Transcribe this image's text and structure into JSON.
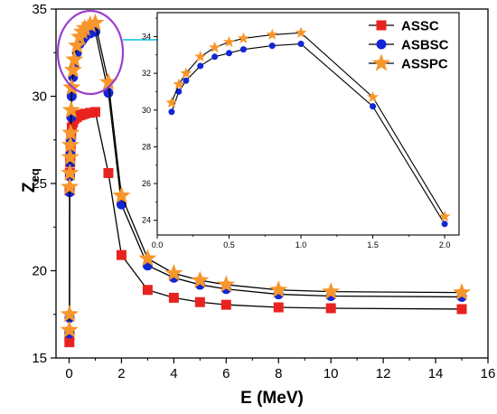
{
  "chart_data": [
    {
      "id": "main",
      "type": "line",
      "xlabel": "E (MeV)",
      "ylabel_main": "Z",
      "ylabel_sub": "eq",
      "xlim": [
        -0.5,
        16
      ],
      "ylim": [
        15,
        35
      ],
      "xticks": [
        0,
        2,
        4,
        6,
        8,
        10,
        12,
        14,
        16
      ],
      "yticks": [
        15,
        20,
        25,
        30,
        35
      ],
      "legend_position": "top-right",
      "series": [
        {
          "name": "ASSC",
          "marker": "square",
          "color": "#e8231f",
          "x": [
            0.01,
            0.015,
            0.02,
            0.03,
            0.04,
            0.05,
            0.06,
            0.08,
            0.1,
            0.15,
            0.2,
            0.3,
            0.4,
            0.5,
            0.6,
            0.8,
            1.0,
            1.5,
            2,
            3,
            4,
            5,
            6,
            8,
            10,
            15
          ],
          "y": [
            15.9,
            16.3,
            24.6,
            25.6,
            26.2,
            26.6,
            27.1,
            27.8,
            28.2,
            28.5,
            28.7,
            28.8,
            28.9,
            28.95,
            29.0,
            29.05,
            29.1,
            25.6,
            20.9,
            18.9,
            18.45,
            18.2,
            18.05,
            17.9,
            17.85,
            17.8
          ]
        },
        {
          "name": "ASBSC",
          "marker": "circle",
          "color": "#1226d6",
          "x": [
            0.01,
            0.015,
            0.02,
            0.03,
            0.04,
            0.05,
            0.06,
            0.08,
            0.1,
            0.15,
            0.2,
            0.3,
            0.4,
            0.5,
            0.6,
            0.8,
            1.0,
            1.5,
            2,
            3,
            4,
            5,
            6,
            8,
            10,
            15
          ],
          "y": [
            16.4,
            17.3,
            24.5,
            25.4,
            26.2,
            26.8,
            27.5,
            28.8,
            30.0,
            31.1,
            31.7,
            32.5,
            33.0,
            33.2,
            33.4,
            33.6,
            33.7,
            30.2,
            23.8,
            20.3,
            19.6,
            19.2,
            18.95,
            18.65,
            18.55,
            18.5
          ]
        },
        {
          "name": "ASSPC",
          "marker": "star",
          "color": "#f7962b",
          "x": [
            0.01,
            0.015,
            0.02,
            0.03,
            0.04,
            0.05,
            0.06,
            0.08,
            0.1,
            0.15,
            0.2,
            0.3,
            0.4,
            0.5,
            0.6,
            0.8,
            1.0,
            1.5,
            2,
            3,
            4,
            5,
            6,
            8,
            10,
            15
          ],
          "y": [
            16.6,
            17.5,
            24.8,
            25.6,
            26.5,
            27.2,
            27.9,
            29.2,
            30.5,
            31.5,
            32.1,
            32.9,
            33.4,
            33.7,
            33.9,
            34.1,
            34.2,
            30.8,
            24.3,
            20.7,
            19.85,
            19.45,
            19.2,
            18.9,
            18.8,
            18.75
          ]
        }
      ]
    },
    {
      "id": "inset",
      "type": "line",
      "xlim": [
        0.0,
        2.1
      ],
      "ylim": [
        23.2,
        35.3
      ],
      "xticks": [
        "0.0",
        "0.5",
        "1.0",
        "1.5",
        "2.0"
      ],
      "yticks": [
        "24",
        "26",
        "28",
        "30",
        "32",
        "34"
      ],
      "series": [
        {
          "name": "ASBSC",
          "marker": "circle",
          "color": "#1226d6",
          "x": [
            0.1,
            0.15,
            0.2,
            0.3,
            0.4,
            0.5,
            0.6,
            0.8,
            1.0,
            1.5,
            2.0
          ],
          "y": [
            29.9,
            31.0,
            31.6,
            32.4,
            32.9,
            33.1,
            33.3,
            33.5,
            33.6,
            30.2,
            23.8
          ]
        },
        {
          "name": "ASSPC",
          "marker": "star",
          "color": "#f7962b",
          "x": [
            0.1,
            0.15,
            0.2,
            0.3,
            0.4,
            0.5,
            0.6,
            0.8,
            1.0,
            1.5,
            2.0
          ],
          "y": [
            30.4,
            31.4,
            32.0,
            32.9,
            33.4,
            33.7,
            33.9,
            34.1,
            34.2,
            30.7,
            24.2
          ]
        }
      ]
    }
  ],
  "colors": {
    "highlight_ellipse": "#9b3fce",
    "arrow": "#3fd3e6"
  }
}
